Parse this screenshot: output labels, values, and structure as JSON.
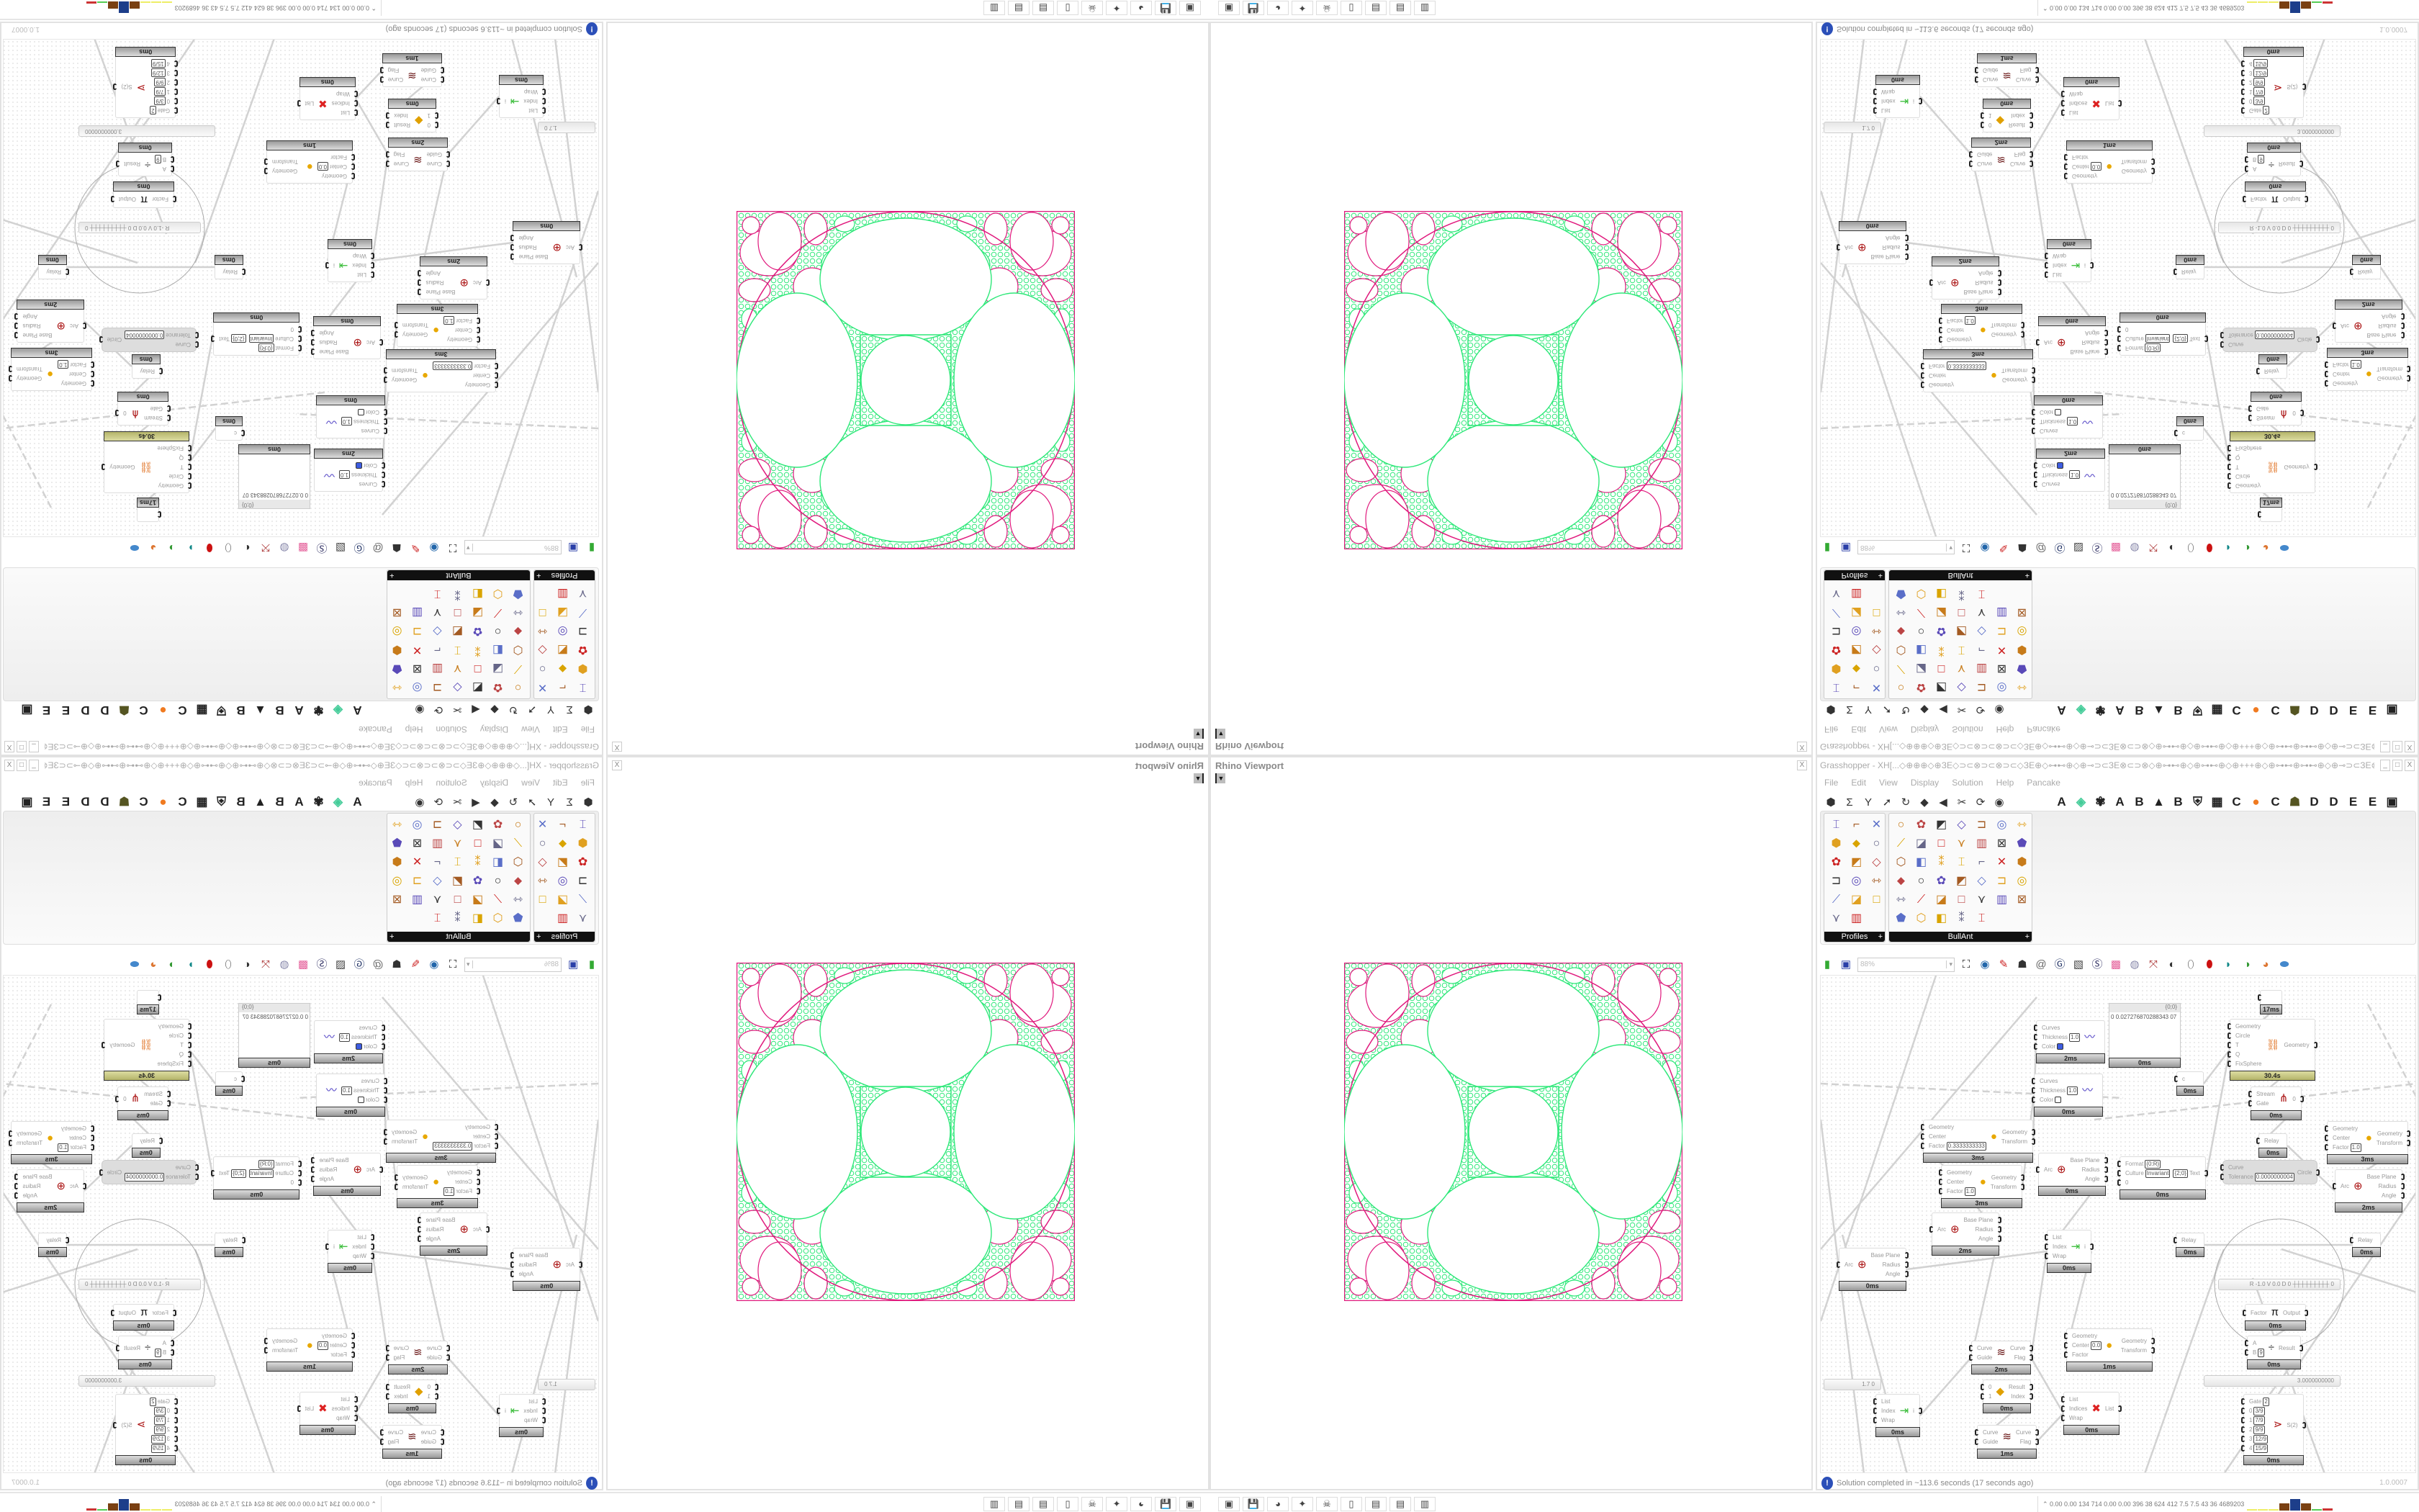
{
  "viewport": {
    "title": "Rhino Viewport",
    "dropdown_icon": "chevron-down-icon",
    "close": "X",
    "colors": {
      "mesh": "#2ee879",
      "outer": "#e0197d",
      "border": "#c2b8c8"
    }
  },
  "grasshopper": {
    "title": "Grasshopper - XH[...◇⊕⊕⊕◇⊕ЗЕ◇⊃⊂⊗⊃⊂⊗⊃⊂◇ЗЕ⊕◇⊶⊷⊕◇⊕⊸⊃⊂ЗЕ⊗⊂⊃⊗◇⊕⊶⊷⊕◇⊕⊶⊷⊕◇⊕+++⊕◇⊕⊶⊷⊕⊶⊷⊕◇⊕⊸⊃⊂ЗЕ⊗⊂⊃⊗◇...",
    "window_buttons": [
      "_",
      "□",
      "X"
    ],
    "menu": [
      "File",
      "Edit",
      "View",
      "Display",
      "Solution",
      "Help",
      "Pancake"
    ],
    "tab_icons": [
      "⬢",
      "Σ",
      "Y",
      "➚",
      "↻",
      "◆",
      "◀",
      "✂",
      "⟳",
      "◉"
    ],
    "tab_letters": [
      "A",
      "◈",
      "✾",
      "A",
      "B",
      "▲",
      "B",
      "⛨",
      "▦",
      "C",
      "●",
      "C",
      "☗",
      "D",
      "D",
      "E",
      "E",
      "▣"
    ],
    "panels": [
      {
        "name": "Profiles",
        "expand": "+"
      },
      {
        "name": "BullAnt",
        "expand": "+"
      }
    ],
    "toolbar": {
      "zoom": "88%",
      "zoom_arrow": "▾",
      "icons": [
        "new-file",
        "save",
        "zoom-extents",
        "preview",
        "sketch",
        "bug",
        "ghpython",
        "gha",
        "canvas",
        "search",
        "package",
        "bulb",
        "wires",
        "hide",
        "shade",
        "red-shade",
        "cyan",
        "green",
        "sphere",
        "blue"
      ]
    },
    "status": {
      "icon": "!",
      "text": "Solution completed in ~113.6 seconds (17 seconds ago)",
      "version": "1.0.0007"
    }
  },
  "nodes": [
    {
      "in": [
        "Curves",
        "Thickness",
        "Color"
      ],
      "vals": [
        null,
        "1.0",
        null
      ],
      "out": [],
      "icon": "〰",
      "status": "2ms",
      "swatch": "#3d5ce0"
    },
    {
      "in": [
        "Curves",
        "Thickness",
        "Color"
      ],
      "vals": [
        null,
        "1.0",
        null
      ],
      "out": [],
      "icon": "〰",
      "status": "0ms",
      "swatch": "#ffffff"
    },
    {
      "in": [
        "Geometry",
        "Center",
        "Factor"
      ],
      "vals": [
        null,
        null,
        "0.3333333333"
      ],
      "out": [
        "Geometry",
        "Transform"
      ],
      "icon": "●",
      "status": "3ms"
    },
    {
      "in": [
        "Geometry",
        "Center",
        "Factor"
      ],
      "vals": [
        null,
        null,
        "1.0"
      ],
      "out": [
        "Geometry",
        "Transform"
      ],
      "icon": "●",
      "status": "3ms"
    },
    {
      "in": [
        "Arc"
      ],
      "vals": [],
      "out": [
        "Base Plane",
        "Radius",
        "Angle"
      ],
      "icon": "⊕",
      "status": "0ms"
    },
    {
      "in": [
        "Geometry",
        "Circle",
        "T",
        "Q",
        "FixSphere"
      ],
      "vals": [],
      "out": [
        "Geometry"
      ],
      "icon": "⛓",
      "status": "30.4s",
      "busy": true
    },
    {
      "in": [
        "Stream",
        "Gate"
      ],
      "vals": [],
      "out": [
        "0"
      ],
      "icon": "⋔",
      "status": "0ms"
    },
    {
      "in": [
        "Relay"
      ],
      "vals": [],
      "out": [],
      "status": "0ms"
    },
    {
      "in": [
        "Geometry",
        "Center",
        "Factor"
      ],
      "vals": [
        null,
        null,
        "1.0"
      ],
      "out": [
        "Geometry",
        "Transform"
      ],
      "icon": "●",
      "status": "3ms"
    },
    {
      "in": [
        "Arc"
      ],
      "vals": [],
      "out": [
        "Base Plane",
        "Radius",
        "Angle"
      ],
      "icon": "⊕",
      "status": "2ms"
    },
    {
      "in": [
        "Format",
        "Culture",
        "0"
      ],
      "vals": [
        "{0:R}",
        "Invariant",
        null
      ],
      "out": [
        "Text"
      ],
      "outval": "{2;0}",
      "status": "0ms"
    },
    {
      "in": [
        "Arc"
      ],
      "vals": [],
      "out": [
        "Base Plane",
        "Radius",
        "Angle"
      ],
      "icon": "⊕",
      "status": "0ms"
    },
    {
      "in": [
        "Arc"
      ],
      "vals": [],
      "out": [
        "Base Plane",
        "Radius",
        "Angle"
      ],
      "icon": "⊕",
      "status": "2ms"
    },
    {
      "in": [
        "List",
        "Index",
        "Wrap"
      ],
      "vals": [],
      "out": [
        "i"
      ],
      "icon": "⇥",
      "status": "0ms"
    },
    {
      "in": [
        "Curve",
        "Guide"
      ],
      "vals": [],
      "out": [
        "Curve",
        "Flag"
      ],
      "icon": "≋",
      "status": "2ms"
    },
    {
      "in": [
        "0",
        "1"
      ],
      "vals": [],
      "out": [
        "Result",
        "Index"
      ],
      "icon": "◆",
      "status": "0ms"
    },
    {
      "in": [
        "Curve",
        "Guide"
      ],
      "vals": [],
      "out": [
        "Curve",
        "Flag"
      ],
      "icon": "≋",
      "status": "1ms"
    },
    {
      "in": [
        "List",
        "Indices",
        "Wrap"
      ],
      "vals": [],
      "out": [
        "List"
      ],
      "icon": "✖",
      "status": "0ms"
    },
    {
      "in": [
        "List",
        "Index",
        "Wrap"
      ],
      "vals": [],
      "out": [
        "i"
      ],
      "icon": "⇥",
      "status": "0ms"
    },
    {
      "in": [
        "Relay"
      ],
      "vals": [],
      "out": [],
      "status": "0ms"
    },
    {
      "in": [
        "Relay"
      ],
      "vals": [],
      "out": [],
      "status": "0ms"
    },
    {
      "in": [
        "Factor"
      ],
      "vals": [],
      "out": [
        "Output"
      ],
      "icon": "π",
      "status": "0ms"
    },
    {
      "in": [
        "A",
        "B"
      ],
      "vals": [
        null,
        "9"
      ],
      "out": [
        "Result"
      ],
      "icon": "÷",
      "status": "0ms"
    },
    {
      "in": [
        "Gate",
        "0",
        "1",
        "2",
        "3",
        "4"
      ],
      "vals": [
        "2",
        "3/9",
        "7/9",
        "9/9",
        "12/9",
        "15/9"
      ],
      "out": [
        "S(2)"
      ],
      "icon": "⋗",
      "status": "0ms"
    },
    {
      "in": [
        "c"
      ],
      "vals": [],
      "out": [],
      "status": "0ms"
    },
    {
      "in": [
        ""
      ],
      "vals": [],
      "out": [],
      "status": "17ms"
    },
    {
      "in": [
        "Geometry",
        "Center",
        "Factor"
      ],
      "vals": [
        null,
        "0.0",
        null
      ],
      "out": [
        "Geometry",
        "Transform"
      ],
      "icon": "●",
      "status": "1ms"
    }
  ],
  "disabled_node": {
    "in": [
      "Curve",
      "Tolerance"
    ],
    "val": "0.0000000004",
    "out": "Circle"
  },
  "panel_node": {
    "header": "{0;0}",
    "index": "0",
    "value": "0.027276870288343 07",
    "status": "0ms"
  },
  "sliders": [
    {
      "text": "R -1.0  V 0.0  D 0   ┼┼┼┼┼┼┼┼┼ 0"
    },
    {
      "text": "3.0000000000"
    },
    {
      "text": "1.7 0"
    }
  ],
  "taskbar": {
    "apps": [
      "▣",
      "💾",
      "◕",
      "✦",
      "☠",
      "▯",
      "▤",
      "▤",
      "▥"
    ],
    "perf": "⌃  0.00 0.00 134 714 0.00 0.00 396 38 624 412 7.5 7.5 43 36 4689203"
  }
}
